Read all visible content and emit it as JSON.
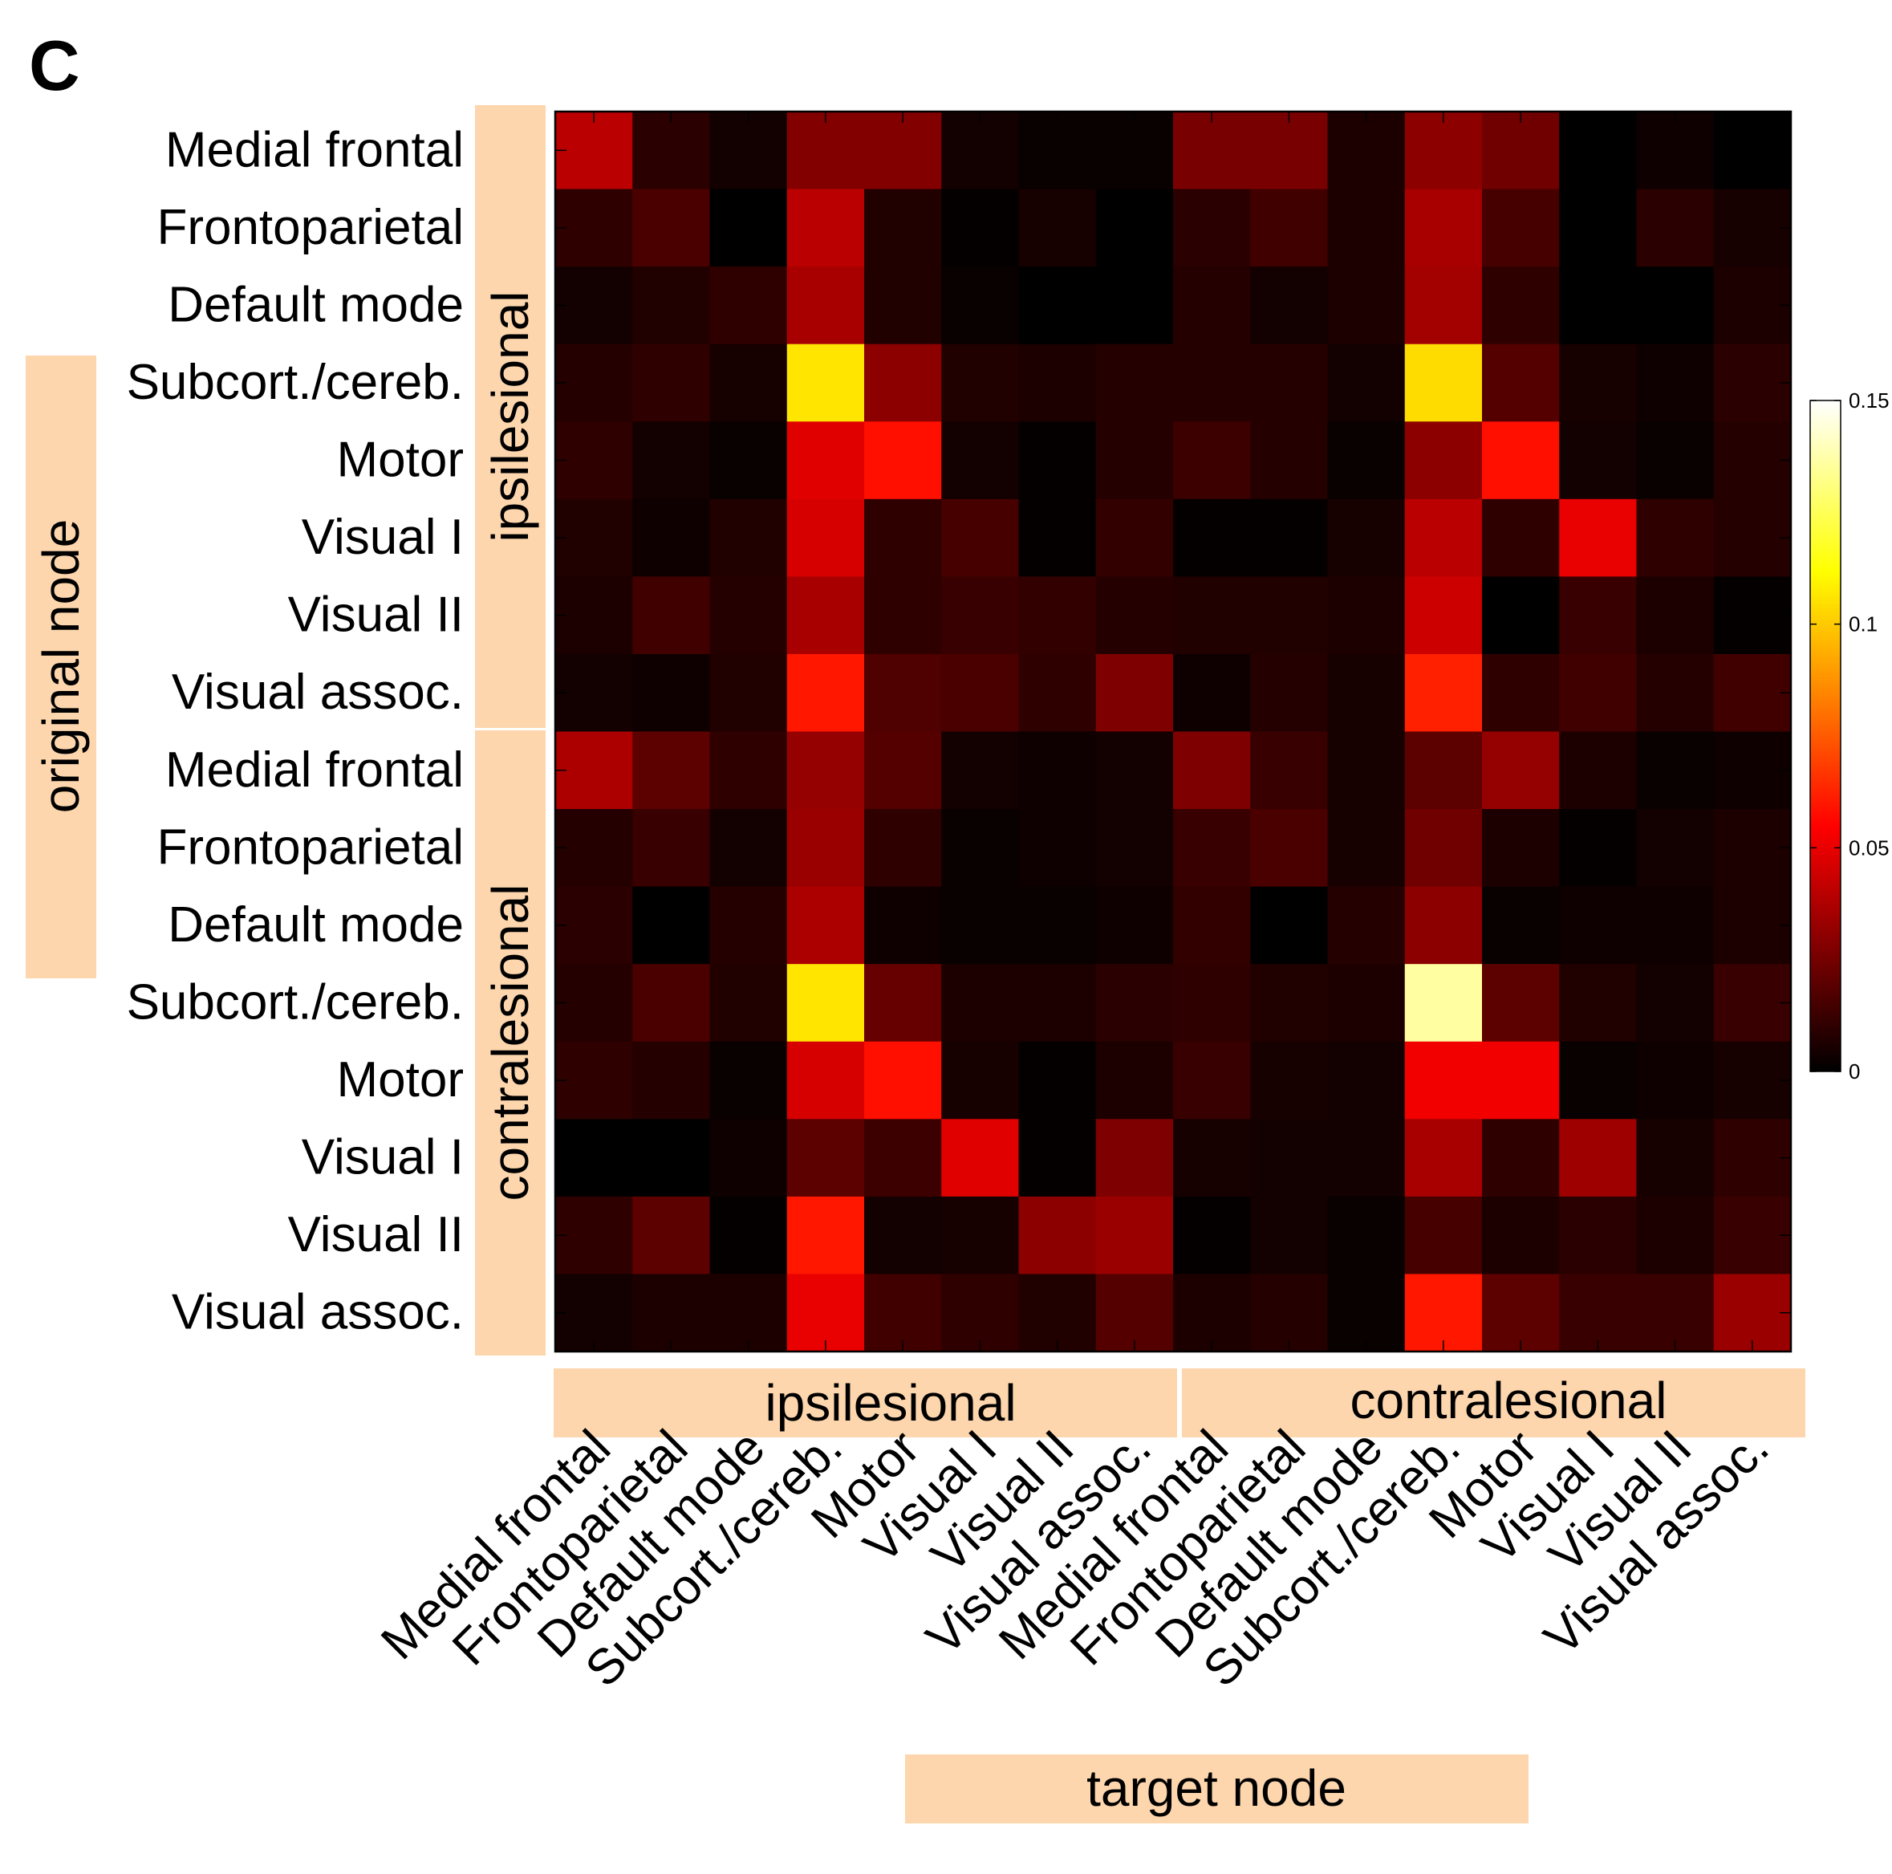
{
  "panel_letter": "C",
  "colors": {
    "band": "#fdd6ad",
    "border": "#000000"
  },
  "chart_data": {
    "type": "heatmap",
    "row_group_title": "original node",
    "col_group_title": "target node",
    "groups": [
      "ipsilesional",
      "contralesional"
    ],
    "row_labels": [
      "Medial frontal",
      "Frontoparietal",
      "Default mode",
      "Subcort./cereb.",
      "Motor",
      "Visual I",
      "Visual II",
      "Visual assoc.",
      "Medial frontal",
      "Frontoparietal",
      "Default mode",
      "Subcort./cereb.",
      "Motor",
      "Visual I",
      "Visual II",
      "Visual assoc."
    ],
    "col_labels": [
      "Medial frontal",
      "Frontoparietal",
      "Default mode",
      "Subcort./cereb.",
      "Motor",
      "Visual I",
      "Visual II",
      "Visual assoc.",
      "Medial frontal",
      "Frontoparietal",
      "Default mode",
      "Subcort./cereb.",
      "Motor",
      "Visual I",
      "Visual II",
      "Visual assoc."
    ],
    "colormap": "hot",
    "clim": [
      0,
      0.15
    ],
    "colorbar_ticks": [
      {
        "value": 0,
        "label": "0"
      },
      {
        "value": 0.05,
        "label": "0.05"
      },
      {
        "value": 0.1,
        "label": "0.1"
      },
      {
        "value": 0.15,
        "label": "0.15"
      }
    ],
    "values": [
      [
        0.04,
        0.009,
        0.004,
        0.028,
        0.028,
        0.004,
        0.002,
        0.002,
        0.026,
        0.026,
        0.006,
        0.03,
        0.024,
        0.0,
        0.003,
        0.0
      ],
      [
        0.01,
        0.016,
        0.0,
        0.04,
        0.007,
        0.001,
        0.005,
        0.0,
        0.009,
        0.014,
        0.006,
        0.036,
        0.015,
        0.0,
        0.009,
        0.005
      ],
      [
        0.004,
        0.007,
        0.01,
        0.036,
        0.007,
        0.002,
        0.0,
        0.0,
        0.008,
        0.004,
        0.006,
        0.035,
        0.01,
        0.0,
        0.0,
        0.006
      ],
      [
        0.008,
        0.01,
        0.005,
        0.106,
        0.03,
        0.007,
        0.006,
        0.008,
        0.008,
        0.008,
        0.004,
        0.104,
        0.018,
        0.005,
        0.003,
        0.009
      ],
      [
        0.01,
        0.004,
        0.002,
        0.048,
        0.058,
        0.004,
        0.001,
        0.008,
        0.013,
        0.008,
        0.002,
        0.03,
        0.058,
        0.004,
        0.002,
        0.008
      ],
      [
        0.007,
        0.003,
        0.007,
        0.046,
        0.01,
        0.015,
        0.001,
        0.011,
        0.001,
        0.001,
        0.005,
        0.04,
        0.01,
        0.05,
        0.01,
        0.008
      ],
      [
        0.006,
        0.014,
        0.008,
        0.036,
        0.01,
        0.012,
        0.011,
        0.008,
        0.007,
        0.007,
        0.006,
        0.044,
        0.0,
        0.012,
        0.006,
        0.001
      ],
      [
        0.004,
        0.003,
        0.007,
        0.06,
        0.017,
        0.016,
        0.01,
        0.027,
        0.003,
        0.008,
        0.005,
        0.062,
        0.01,
        0.014,
        0.008,
        0.014
      ],
      [
        0.037,
        0.02,
        0.01,
        0.032,
        0.018,
        0.004,
        0.003,
        0.004,
        0.027,
        0.012,
        0.005,
        0.02,
        0.032,
        0.006,
        0.002,
        0.003
      ],
      [
        0.008,
        0.012,
        0.004,
        0.033,
        0.01,
        0.002,
        0.003,
        0.004,
        0.012,
        0.016,
        0.005,
        0.024,
        0.006,
        0.001,
        0.004,
        0.006
      ],
      [
        0.009,
        0.0,
        0.008,
        0.037,
        0.003,
        0.002,
        0.002,
        0.003,
        0.011,
        0.0,
        0.008,
        0.03,
        0.002,
        0.003,
        0.003,
        0.006
      ],
      [
        0.008,
        0.016,
        0.007,
        0.106,
        0.022,
        0.006,
        0.006,
        0.009,
        0.01,
        0.007,
        0.006,
        0.136,
        0.02,
        0.007,
        0.004,
        0.012
      ],
      [
        0.01,
        0.008,
        0.002,
        0.046,
        0.058,
        0.005,
        0.001,
        0.006,
        0.012,
        0.005,
        0.004,
        0.052,
        0.052,
        0.002,
        0.003,
        0.005
      ],
      [
        0.0,
        0.0,
        0.003,
        0.02,
        0.013,
        0.048,
        0.001,
        0.027,
        0.005,
        0.004,
        0.004,
        0.036,
        0.01,
        0.034,
        0.005,
        0.01
      ],
      [
        0.01,
        0.02,
        0.001,
        0.06,
        0.004,
        0.005,
        0.03,
        0.033,
        0.001,
        0.004,
        0.002,
        0.015,
        0.006,
        0.009,
        0.006,
        0.012
      ],
      [
        0.004,
        0.006,
        0.006,
        0.05,
        0.014,
        0.01,
        0.007,
        0.018,
        0.006,
        0.008,
        0.002,
        0.06,
        0.02,
        0.012,
        0.012,
        0.033
      ]
    ]
  }
}
